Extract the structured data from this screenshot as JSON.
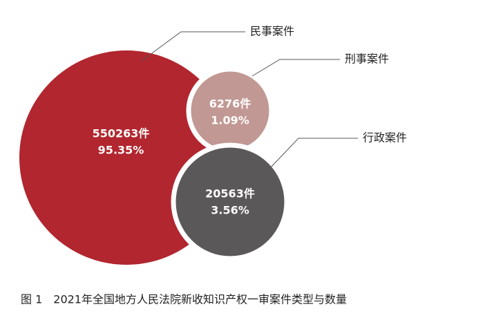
{
  "chart_data": {
    "type": "bubble",
    "title": "图 1　2021年全国地方人民法院新收知识产权一审案件类型与数量",
    "categories": [
      "民事案件",
      "刑事案件",
      "行政案件"
    ],
    "values": [
      550263,
      6276,
      20563
    ],
    "value_labels": [
      "550263件",
      "6276件",
      "20563件"
    ],
    "shares": [
      95.35,
      1.09,
      3.56
    ],
    "share_labels": [
      "95.35%",
      "1.09%",
      "3.56%"
    ],
    "colors": [
      "#b2262f",
      "#c19893",
      "#5b5859"
    ]
  }
}
